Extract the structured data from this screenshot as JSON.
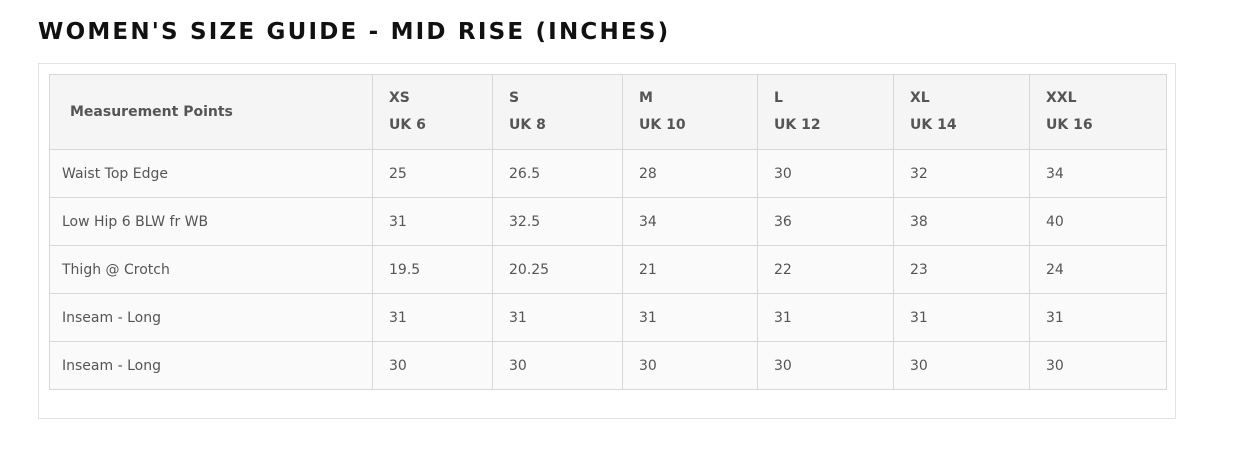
{
  "title": "WOMEN'S SIZE GUIDE - MID RISE (INCHES)",
  "table": {
    "header": {
      "label": "Measurement Points",
      "sizes": [
        {
          "size": "XS",
          "uk": "UK 6"
        },
        {
          "size": "S",
          "uk": "UK 8"
        },
        {
          "size": "M",
          "uk": "UK 10"
        },
        {
          "size": "L",
          "uk": "UK 12"
        },
        {
          "size": "XL",
          "uk": "UK 14"
        },
        {
          "size": "XXL",
          "uk": "UK 16"
        }
      ]
    },
    "rows": [
      [
        "Waist Top Edge",
        25,
        26.5,
        28,
        30,
        32,
        34
      ],
      [
        "Low Hip 6 BLW fr WB",
        31,
        32.5,
        34,
        36,
        38,
        40
      ],
      [
        "Thigh @ Crotch",
        19.5,
        20.25,
        21,
        22,
        23,
        24
      ],
      [
        "Inseam - Long",
        31,
        31,
        31,
        31,
        31,
        31
      ],
      [
        "Inseam - Long",
        30,
        30,
        30,
        30,
        30,
        30
      ]
    ]
  }
}
